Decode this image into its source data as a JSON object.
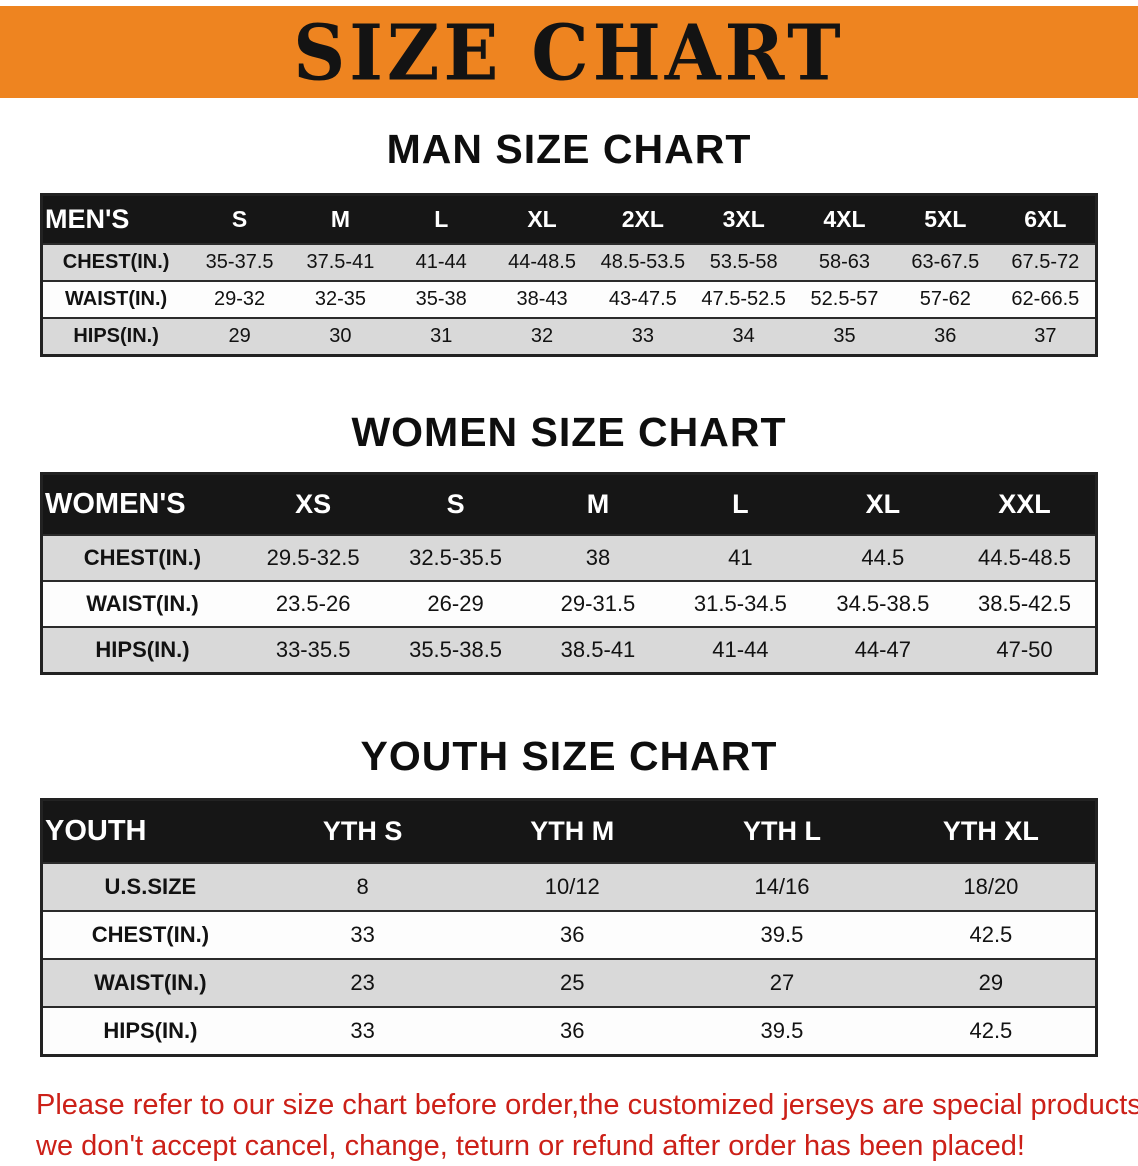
{
  "banner": {
    "title": "SIZE CHART"
  },
  "men": {
    "heading": "MAN SIZE CHART",
    "table": {
      "header": [
        "MEN'S",
        "S",
        "M",
        "L",
        "XL",
        "2XL",
        "3XL",
        "4XL",
        "5XL",
        "6XL"
      ],
      "rows": [
        [
          "CHEST(IN.)",
          "35-37.5",
          "37.5-41",
          "41-44",
          "44-48.5",
          "48.5-53.5",
          "53.5-58",
          "58-63",
          "63-67.5",
          "67.5-72"
        ],
        [
          "WAIST(IN.)",
          "29-32",
          "32-35",
          "35-38",
          "38-43",
          "43-47.5",
          "47.5-52.5",
          "52.5-57",
          "57-62",
          "62-66.5"
        ],
        [
          "HIPS(IN.)",
          "29",
          "30",
          "31",
          "32",
          "33",
          "34",
          "35",
          "36",
          "37"
        ]
      ]
    }
  },
  "women": {
    "heading": "WOMEN SIZE CHART",
    "table": {
      "header": [
        "WOMEN'S",
        "XS",
        "S",
        "M",
        "L",
        "XL",
        "XXL"
      ],
      "rows": [
        [
          "CHEST(IN.)",
          "29.5-32.5",
          "32.5-35.5",
          "38",
          "41",
          "44.5",
          "44.5-48.5"
        ],
        [
          "WAIST(IN.)",
          "23.5-26",
          "26-29",
          "29-31.5",
          "31.5-34.5",
          "34.5-38.5",
          "38.5-42.5"
        ],
        [
          "HIPS(IN.)",
          "33-35.5",
          "35.5-38.5",
          "38.5-41",
          "41-44",
          "44-47",
          "47-50"
        ]
      ]
    }
  },
  "youth": {
    "heading": "YOUTH SIZE CHART",
    "table": {
      "header": [
        "YOUTH",
        "YTH S",
        "YTH M",
        "YTH L",
        "YTH XL"
      ],
      "rows": [
        [
          "U.S.SIZE",
          "8",
          "10/12",
          "14/16",
          "18/20"
        ],
        [
          "CHEST(IN.)",
          "33",
          "36",
          "39.5",
          "42.5"
        ],
        [
          "WAIST(IN.)",
          "23",
          "25",
          "27",
          "29"
        ],
        [
          "HIPS(IN.)",
          "33",
          "36",
          "39.5",
          "42.5"
        ]
      ]
    }
  },
  "disclaimer": {
    "line1": "Please refer to our size chart before order,the customized jerseys are special products,",
    "line2": "we don't accept cancel, change, teturn or refund after order has been placed!"
  },
  "colors": {
    "banner_bg": "#ee8420",
    "header_bg": "#161616",
    "stripe": "#d9d9d9",
    "disclaimer_red": "#cc2018"
  }
}
